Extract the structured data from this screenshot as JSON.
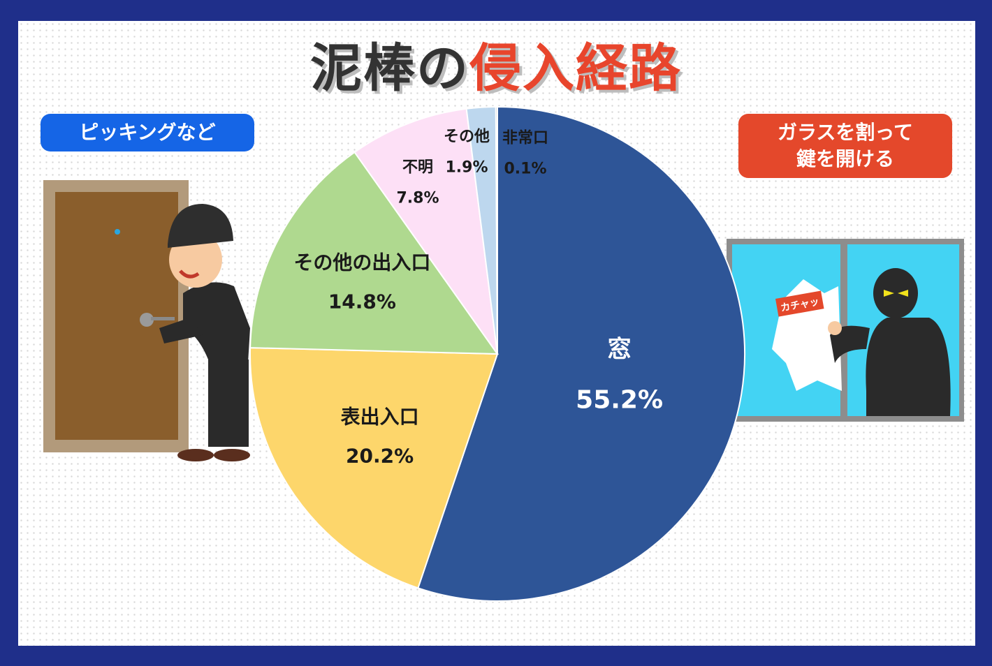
{
  "title": {
    "part1": "泥棒の",
    "part2": "侵入経路"
  },
  "callouts": {
    "left": "ピッキングなど",
    "right_line1": "ガラスを割って",
    "right_line2": "鍵を開ける",
    "sound": "カチャッ"
  },
  "chart_data": {
    "type": "pie",
    "title": "泥棒の侵入経路",
    "slices": [
      {
        "label": "窓",
        "value": 55.2,
        "value_text": "55.2%",
        "color": "#2e5597"
      },
      {
        "label": "表出入口",
        "value": 20.2,
        "value_text": "20.2%",
        "color": "#fdd66b"
      },
      {
        "label": "その他の出入口",
        "value": 14.8,
        "value_text": "14.8%",
        "color": "#afd98f"
      },
      {
        "label": "不明",
        "value": 7.8,
        "value_text": "7.8%",
        "color": "#fde0f6"
      },
      {
        "label": "その他",
        "value": 1.9,
        "value_text": "1.9%",
        "color": "#bdd7ee"
      },
      {
        "label": "非常口",
        "value": 0.1,
        "value_text": "0.1%",
        "color": "#7f7f7f"
      }
    ]
  }
}
